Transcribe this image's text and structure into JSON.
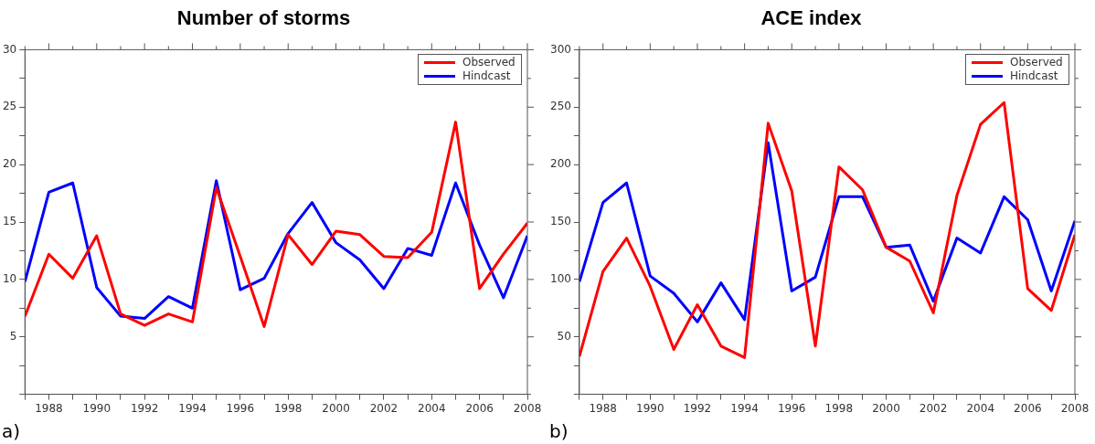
{
  "chart_data": [
    {
      "type": "line",
      "title": "Number of storms",
      "annotations": [
        "a)"
      ],
      "legend": "top right",
      "x": [
        1987,
        1988,
        1989,
        1990,
        1991,
        1992,
        1993,
        1994,
        1995,
        1996,
        1997,
        1998,
        1999,
        2000,
        2001,
        2002,
        2003,
        2004,
        2005,
        2006,
        2007,
        2008
      ],
      "series": [
        {
          "name": "Observed",
          "color": "#ff0000",
          "values": [
            6.8,
            12.2,
            10.1,
            13.8,
            7.0,
            6.0,
            7.0,
            6.3,
            18.0,
            12.0,
            5.9,
            13.9,
            11.3,
            14.2,
            13.9,
            12.0,
            11.9,
            14.1,
            23.7,
            9.2,
            12.2,
            14.9
          ]
        },
        {
          "name": "Hindcast",
          "color": "#0000ff",
          "values": [
            9.8,
            17.6,
            18.4,
            9.3,
            6.8,
            6.6,
            8.5,
            7.5,
            18.6,
            9.1,
            10.1,
            14.0,
            16.7,
            13.2,
            11.7,
            9.2,
            12.7,
            12.1,
            18.4,
            13.0,
            8.4,
            13.8
          ]
        }
      ],
      "xlim": [
        1987,
        2008
      ],
      "xticks": [
        {
          "value": 1987,
          "label": null
        },
        1988,
        {
          "value": 1989,
          "label": null
        },
        1990,
        {
          "value": 1991,
          "label": null
        },
        1992,
        {
          "value": 1993,
          "label": null
        },
        1994,
        {
          "value": 1995,
          "label": null
        },
        1996,
        {
          "value": 1997,
          "label": null
        },
        1998,
        {
          "value": 1999,
          "label": null
        },
        2000,
        {
          "value": 2001,
          "label": null
        },
        2002,
        {
          "value": 2003,
          "label": null
        },
        2004,
        {
          "value": 2005,
          "label": null
        },
        2006,
        {
          "value": 2007,
          "label": null
        },
        2008
      ],
      "ylim": [
        0,
        30
      ],
      "yticks": [
        {
          "value": 0,
          "label": null
        },
        {
          "value": 2.5,
          "label": null
        },
        5,
        {
          "value": 7.5,
          "label": null
        },
        10,
        {
          "value": 12.5,
          "label": null
        },
        15,
        {
          "value": 17.5,
          "label": null
        },
        20,
        {
          "value": 22.5,
          "label": null
        },
        25,
        {
          "value": 27.5,
          "label": null
        },
        30
      ],
      "grid": false
    },
    {
      "type": "line",
      "title": "ACE index",
      "annotations": [
        "b)"
      ],
      "legend": "top right",
      "x": [
        1987,
        1988,
        1989,
        1990,
        1991,
        1992,
        1993,
        1994,
        1995,
        1996,
        1997,
        1998,
        1999,
        2000,
        2001,
        2002,
        2003,
        2004,
        2005,
        2006,
        2007,
        2008
      ],
      "series": [
        {
          "name": "Observed",
          "color": "#ff0000",
          "values": [
            33,
            107,
            136,
            94,
            39,
            78,
            42,
            32,
            236,
            177,
            42,
            198,
            178,
            128,
            116,
            71,
            173,
            235,
            254,
            92,
            73,
            139
          ]
        },
        {
          "name": "Hindcast",
          "color": "#0000ff",
          "values": [
            98,
            167,
            184,
            103,
            88,
            63,
            97,
            65,
            219,
            90,
            102,
            172,
            172,
            128,
            130,
            81,
            136,
            123,
            172,
            152,
            90,
            151
          ]
        }
      ],
      "xlim": [
        1987,
        2008
      ],
      "xticks": [
        {
          "value": 1987,
          "label": null
        },
        1988,
        {
          "value": 1989,
          "label": null
        },
        1990,
        {
          "value": 1991,
          "label": null
        },
        1992,
        {
          "value": 1993,
          "label": null
        },
        1994,
        {
          "value": 1995,
          "label": null
        },
        1996,
        {
          "value": 1997,
          "label": null
        },
        1998,
        {
          "value": 1999,
          "label": null
        },
        2000,
        {
          "value": 2001,
          "label": null
        },
        2002,
        {
          "value": 2003,
          "label": null
        },
        2004,
        {
          "value": 2005,
          "label": null
        },
        2006,
        {
          "value": 2007,
          "label": null
        },
        2008
      ],
      "ylim": [
        0,
        300
      ],
      "yticks": [
        {
          "value": 0,
          "label": null
        },
        {
          "value": 25,
          "label": null
        },
        50,
        {
          "value": 75,
          "label": null
        },
        100,
        {
          "value": 125,
          "label": null
        },
        150,
        {
          "value": 175,
          "label": null
        },
        200,
        {
          "value": 225,
          "label": null
        },
        250,
        {
          "value": 275,
          "label": null
        },
        300
      ],
      "grid": false
    }
  ]
}
